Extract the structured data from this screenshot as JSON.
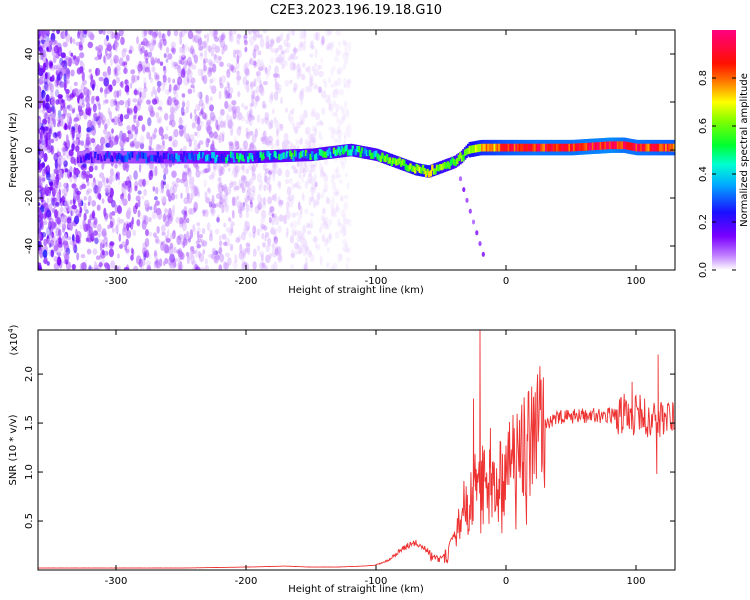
{
  "chart_data": [
    {
      "type": "heatmap",
      "title": "C2E3.2023.196.19.18.G10",
      "xlabel": "Height of straight line (km)",
      "ylabel": "Frequency (Hz)",
      "xlim": [
        -360,
        130
      ],
      "ylim": [
        -50,
        50
      ],
      "xticks": [
        -300,
        -200,
        -100,
        0,
        100
      ],
      "yticks": [
        -40,
        -20,
        0,
        20,
        40
      ],
      "colorbar": {
        "label": "Normalized spectral amplitude",
        "range": [
          0.0,
          1.0
        ],
        "ticks": [
          0.0,
          0.2,
          0.4,
          0.6,
          0.8
        ],
        "colormap": "rainbow (magenta-blue-cyan-green-yellow-red-pink)",
        "low_color": "#ffffff",
        "colors": [
          "#ffffff",
          "#b070ff",
          "#6000e0",
          "#0040ff",
          "#00e0ff",
          "#00ff40",
          "#ffff00",
          "#ff2000",
          "#ff0080"
        ]
      },
      "ridge": {
        "description": "frequency of dominant component vs height",
        "x": [
          -330,
          -300,
          -250,
          -200,
          -150,
          -120,
          -100,
          -90,
          -80,
          -70,
          -60,
          -50,
          -40,
          -35,
          -30,
          -20,
          -10,
          0,
          20,
          50,
          80,
          90,
          100,
          130
        ],
        "y": [
          -3,
          -3,
          -3,
          -3,
          -2,
          0,
          -2,
          -4,
          -6,
          -8,
          -9,
          -7,
          -5,
          -3,
          0,
          1,
          1,
          1,
          1,
          1,
          2,
          2,
          1,
          1
        ],
        "amplitude": [
          0.2,
          0.25,
          0.35,
          0.45,
          0.5,
          0.55,
          0.55,
          0.6,
          0.6,
          0.65,
          0.7,
          0.6,
          0.55,
          0.6,
          0.65,
          0.75,
          0.8,
          0.85,
          0.9,
          0.9,
          0.95,
          0.9,
          0.9,
          0.85
        ]
      },
      "noise_region_x": [
        -360,
        -120
      ]
    },
    {
      "type": "line",
      "xlabel": "Height of straight line (km)",
      "ylabel": "SNR (10 * v/v)",
      "multiplier": "(x10",
      "multiplier_exp": "4",
      "multiplier_close": ")",
      "xlim": [
        -360,
        130
      ],
      "ylim": [
        0,
        2.45
      ],
      "xticks": [
        -300,
        -200,
        -100,
        0,
        100
      ],
      "yticks": [
        0.5,
        1.0,
        1.5,
        2.0
      ],
      "ytick_labels": [
        "0.5",
        "1.0",
        "1.5",
        "2.0"
      ],
      "color": "#ee3333",
      "envelope": {
        "x": [
          -360,
          -300,
          -250,
          -200,
          -170,
          -150,
          -130,
          -110,
          -100,
          -90,
          -80,
          -70,
          -60,
          -55,
          -50,
          -45,
          -40,
          -35,
          -30,
          -25,
          -20,
          -15,
          -10,
          0,
          10,
          20,
          30,
          40,
          60,
          80,
          95,
          100,
          110,
          115,
          120,
          130
        ],
        "y": [
          0.02,
          0.02,
          0.02,
          0.03,
          0.04,
          0.03,
          0.03,
          0.04,
          0.05,
          0.1,
          0.22,
          0.28,
          0.2,
          0.15,
          0.12,
          0.22,
          0.35,
          0.5,
          0.75,
          0.85,
          0.9,
          0.95,
          1.0,
          1.05,
          1.15,
          1.35,
          1.5,
          1.55,
          1.58,
          1.58,
          1.6,
          1.58,
          1.55,
          1.5,
          1.55,
          1.55
        ]
      },
      "spikes": [
        {
          "x": -20,
          "y": 2.45
        },
        {
          "x": -25,
          "y": 1.75
        },
        {
          "x": -12,
          "y": 1.45
        },
        {
          "x": 97,
          "y": 1.92
        },
        {
          "x": 117,
          "y": 2.2
        },
        {
          "x": 116,
          "y": 0.98
        }
      ]
    }
  ]
}
